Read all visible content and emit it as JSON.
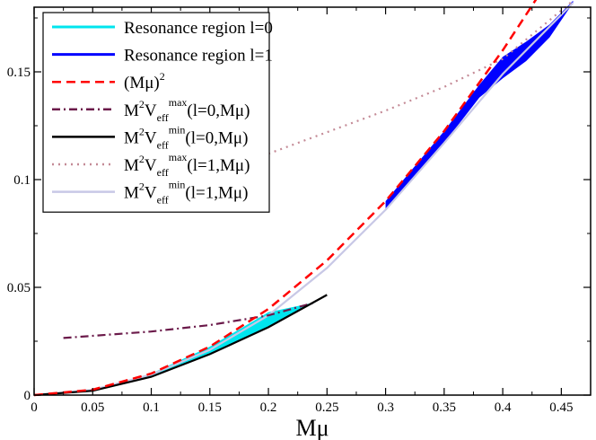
{
  "chart_data": {
    "type": "line",
    "title": "",
    "xlabel": "Mμ",
    "ylabel": "",
    "xlim": [
      0,
      0.475
    ],
    "ylim": [
      0,
      0.18
    ],
    "grid": false,
    "legend_position": "top-left",
    "x_ticks": [
      0,
      0.05,
      0.1,
      0.15,
      0.2,
      0.25,
      0.3,
      0.35,
      0.4,
      0.45
    ],
    "x_tick_labels": [
      "0",
      "0.05",
      "0.1",
      "0.15",
      "0.2",
      "0.25",
      "0.3",
      "0.35",
      "0.4",
      "0.45"
    ],
    "y_ticks": [
      0,
      0.05,
      0.1,
      0.15
    ],
    "y_tick_labels": [
      "0",
      "0.05",
      "0.1",
      "0.15"
    ],
    "legend": [
      {
        "key": "res0",
        "label": "Resonance region l=0",
        "style": "solid",
        "color": "#00e5ee"
      },
      {
        "key": "res1",
        "label": "Resonance region l=1",
        "style": "solid",
        "color": "#0000ff"
      },
      {
        "key": "mu2",
        "base": "(Mμ)",
        "sup": "2",
        "style": "dashed",
        "color": "#ff0000"
      },
      {
        "key": "vmax0",
        "pre": "M",
        "pre_sup": "2",
        "v": "V",
        "sub": "eff",
        "sup": "max",
        "arg": "(l=0,Mμ)",
        "style": "dashdot",
        "color": "#6b1a4a"
      },
      {
        "key": "vmin0",
        "pre": "M",
        "pre_sup": "2",
        "v": "V",
        "sub": "eff",
        "sup": "min",
        "arg": "(l=0,Mμ)",
        "style": "solid",
        "color": "#000000"
      },
      {
        "key": "vmax1",
        "pre": "M",
        "pre_sup": "2",
        "v": "V",
        "sub": "eff",
        "sup": "max",
        "arg": "(l=1,Mμ)",
        "style": "dotted",
        "color": "#c48a96"
      },
      {
        "key": "vmin1",
        "pre": "M",
        "pre_sup": "2",
        "v": "V",
        "sub": "eff",
        "sup": "min",
        "arg": "(l=1,Mμ)",
        "style": "solid",
        "color": "#c8c8e6"
      }
    ],
    "series": [
      {
        "key": "mu2",
        "x": [
          0,
          0.05,
          0.1,
          0.15,
          0.2,
          0.25,
          0.3,
          0.35,
          0.4,
          0.43
        ],
        "y": [
          0,
          0.0025,
          0.01,
          0.0225,
          0.04,
          0.0625,
          0.09,
          0.1225,
          0.16,
          0.1849
        ]
      },
      {
        "key": "vmax0",
        "x": [
          0.025,
          0.05,
          0.1,
          0.15,
          0.2,
          0.24
        ],
        "y": [
          0.0265,
          0.0275,
          0.0295,
          0.0325,
          0.037,
          0.043
        ]
      },
      {
        "key": "vmin0",
        "x": [
          0,
          0.05,
          0.1,
          0.15,
          0.2,
          0.25
        ],
        "y": [
          0,
          0.002,
          0.0085,
          0.019,
          0.0315,
          0.0465
        ]
      },
      {
        "key": "vmax1",
        "x": [
          0.2,
          0.25,
          0.3,
          0.35,
          0.4,
          0.46
        ],
        "y": [
          0.112,
          0.122,
          0.132,
          0.143,
          0.156,
          0.183
        ]
      },
      {
        "key": "vmin1",
        "x": [
          0,
          0.05,
          0.1,
          0.15,
          0.2,
          0.25,
          0.3,
          0.35,
          0.4,
          0.46
        ],
        "y": [
          0,
          0.0024,
          0.0095,
          0.021,
          0.037,
          0.059,
          0.086,
          0.117,
          0.149,
          0.182
        ]
      }
    ],
    "regions": [
      {
        "key": "res0",
        "x_upper": [
          0,
          0.05,
          0.1,
          0.15,
          0.2,
          0.24
        ],
        "y_upper": [
          0,
          0.0025,
          0.01,
          0.0225,
          0.0385,
          0.043
        ],
        "x_lower": [
          0.24,
          0.2,
          0.15,
          0.1,
          0.05,
          0
        ],
        "y_lower": [
          0.043,
          0.0315,
          0.019,
          0.0085,
          0.002,
          0
        ]
      },
      {
        "key": "res1",
        "x_upper": [
          0.3,
          0.35,
          0.38,
          0.4,
          0.42,
          0.44,
          0.46
        ],
        "y_upper": [
          0.09,
          0.1225,
          0.144,
          0.157,
          0.164,
          0.172,
          0.183
        ],
        "x_lower": [
          0.46,
          0.44,
          0.42,
          0.4,
          0.38,
          0.35,
          0.3
        ],
        "y_lower": [
          0.182,
          0.166,
          0.155,
          0.147,
          0.138,
          0.117,
          0.086
        ]
      }
    ]
  }
}
